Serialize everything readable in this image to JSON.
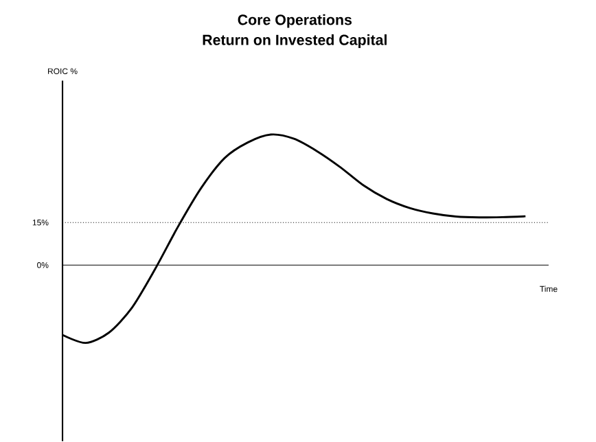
{
  "chart_data": {
    "type": "line",
    "title": "Core Operations",
    "subtitle": "Return on Invested Capital",
    "xlabel": "Time",
    "ylabel": "ROIC %",
    "categories": [
      null,
      null,
      null,
      null,
      null,
      null,
      null,
      null,
      null,
      null,
      null,
      null,
      null,
      null,
      null,
      null,
      null,
      null,
      null,
      null,
      null
    ],
    "series": [
      {
        "color": "#000000",
        "values": [
          -24.6,
          -27.4,
          -23.8,
          -15,
          -1.4,
          13.7,
          27.3,
          37.7,
          43.2,
          46,
          44.5,
          40.1,
          34.5,
          28.1,
          23.3,
          20.1,
          18.2,
          17.1,
          16.8,
          16.9,
          17.2
        ]
      }
    ],
    "ylim": [
      -62,
      65
    ],
    "yticks": [
      {
        "value": 0,
        "label": "0%"
      },
      {
        "value": 15,
        "label": "15%"
      }
    ],
    "ref_lines": [
      {
        "axis": "y",
        "value": 0,
        "line_style": "solid"
      },
      {
        "axis": "y",
        "value": 15,
        "line_style": "dotted"
      }
    ],
    "grid": false,
    "marker": "none",
    "line_style": "solid"
  }
}
